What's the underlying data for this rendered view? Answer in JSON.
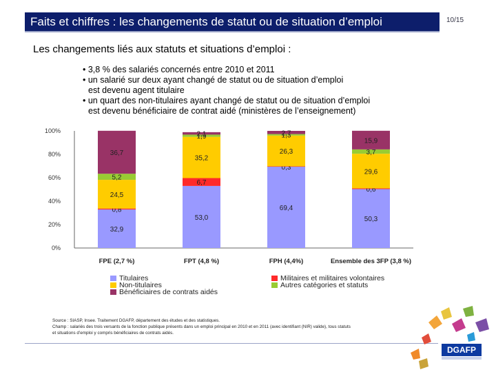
{
  "header": {
    "title": "Faits et chiffres : les changements de statut ou de situation d’emploi",
    "page": "10/15"
  },
  "intro": {
    "heading": "Les changements liés aux statuts et situations d’emploi :",
    "bullets": [
      {
        "line1": "• 3,8 % des salariés concernés entre 2010 et 2011",
        "line2": ""
      },
      {
        "line1": "• un salarié sur deux ayant changé de statut ou de situation d’emploi",
        "line2": "est devenu agent titulaire"
      },
      {
        "line1": "• un quart des non-titulaires ayant changé de statut ou de situation d’emploi",
        "line2": "est devenu bénéficiaire de contrat aidé (ministères de l’enseignement)"
      }
    ]
  },
  "chart_data": {
    "type": "bar",
    "stacked": true,
    "percent": true,
    "categories": [
      "FPE (2,7 %)",
      "FPT (4,8 %)",
      "FPH (4,4%)",
      "Ensemble des 3FP (3,8 %)"
    ],
    "y_ticks": [
      "0%",
      "20%",
      "40%",
      "60%",
      "80%",
      "100%"
    ],
    "ylim": [
      0,
      100
    ],
    "series": [
      {
        "name": "Titulaires",
        "color": "#9999ff",
        "values": [
          32.9,
          53.0,
          69.4,
          50.3
        ],
        "labels": [
          "32,9",
          "53,0",
          "69,4",
          "50,3"
        ]
      },
      {
        "name": "Militaires et militaires volontaires",
        "color": "#ff2a2a",
        "values": [
          0.8,
          6.7,
          0.3,
          0.6
        ],
        "labels": [
          "0,8",
          "6,7",
          "0,3",
          "0,6"
        ]
      },
      {
        "name": "Non-titulaires",
        "color": "#ffcc00",
        "values": [
          24.5,
          35.2,
          26.3,
          29.6
        ],
        "labels": [
          "24,5",
          "35,2",
          "26,3",
          "29,6"
        ]
      },
      {
        "name": "Autres catégories et statuts",
        "color": "#99cc33",
        "values": [
          5.2,
          1.9,
          1.3,
          3.7
        ],
        "labels": [
          "5,2",
          "1,9",
          "1,3",
          "3,7"
        ]
      },
      {
        "name": "Bénéficiaires de contrats aidés",
        "color": "#993366",
        "values": [
          36.7,
          2.1,
          2.7,
          15.9
        ],
        "labels": [
          "36,7",
          "2,1",
          "2,7",
          "15,9"
        ]
      }
    ]
  },
  "legend": {
    "titulaires": "Titulaires",
    "non_titulaires": "Non-titulaires",
    "contrats_aides": "Bénéficiaires de contrats aidés",
    "militaires": "Militaires et militaires volontaires",
    "autres": "Autres catégories et statuts"
  },
  "source": {
    "line1": "Source : SIASP, Insee. Traitement DGAFP, département des études et des statistiques.",
    "line2": "Champ : salariés des trois versants de la fonction publique présents dans un emploi principal en 2010 et en 2011 (avec identifiant (NIR) valide), tous statuts",
    "line3": "et situations d’emploi y compris bénéficiaires de contrats aidés."
  },
  "logo": {
    "text": "DGAFP"
  },
  "colors": {
    "title_bg": "#0d1e6b",
    "accent": "#9aa3c7"
  }
}
